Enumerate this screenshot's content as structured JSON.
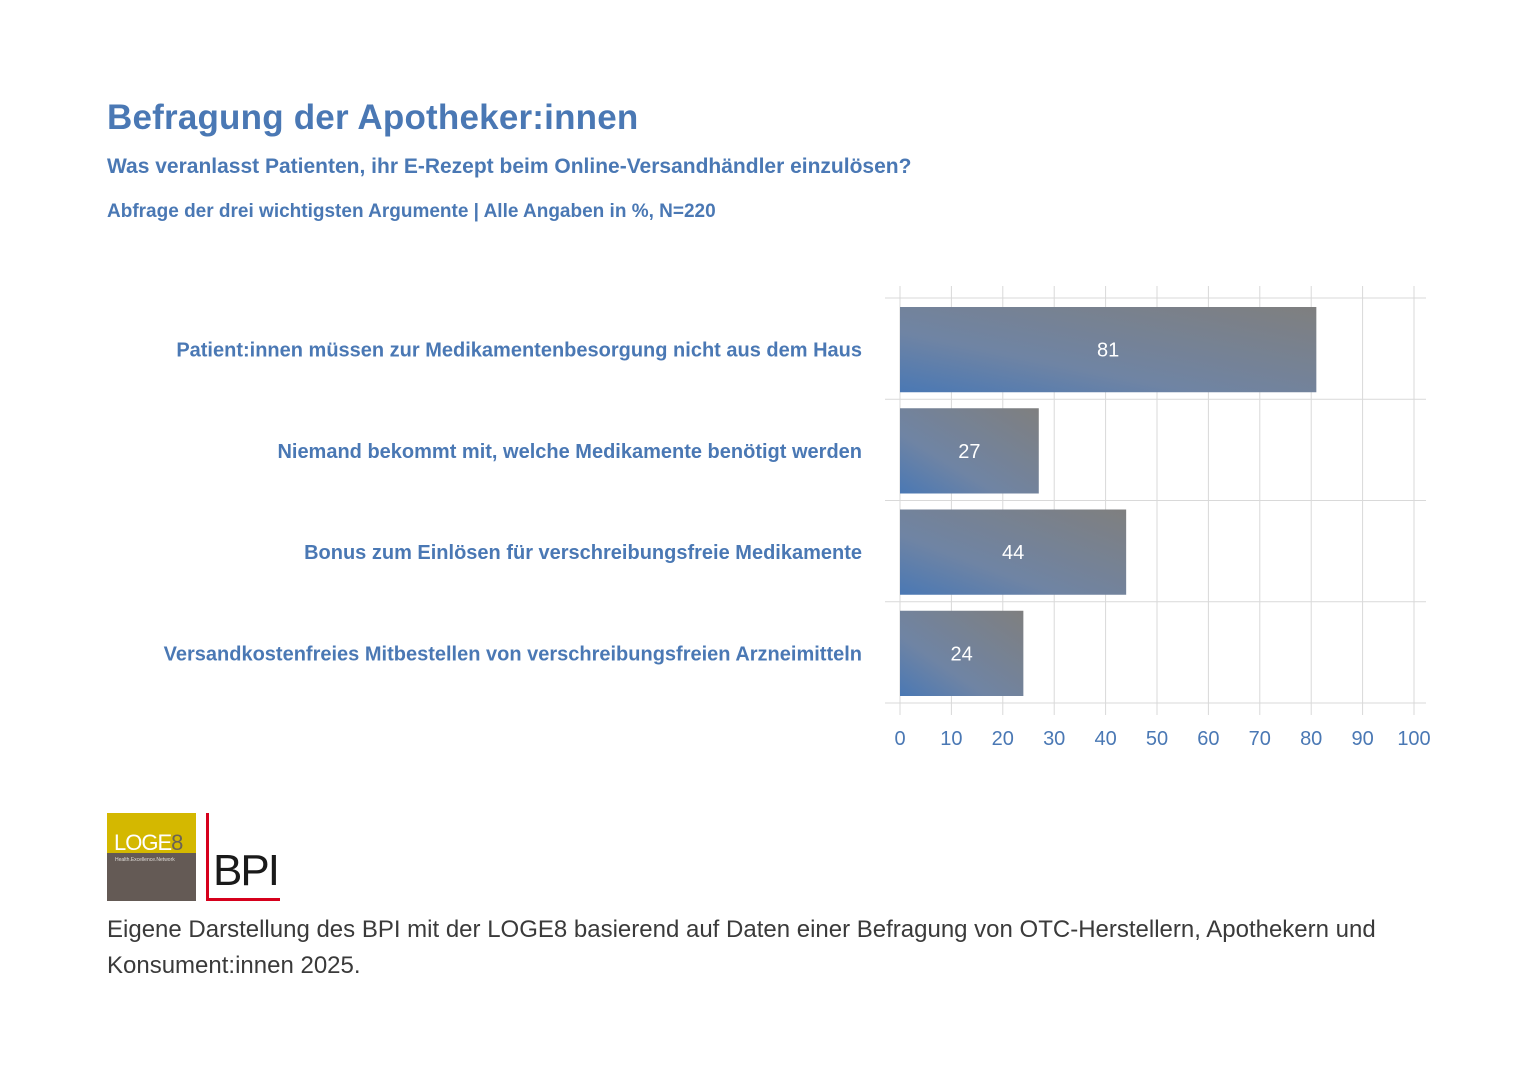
{
  "header": {
    "title": "Befragung der Apotheker:innen",
    "subtitle": "Was veranlasst Patienten, ihr E-Rezept beim Online-Versandhändler einzulösen?",
    "note": "Abfrage der drei wichtigsten Argumente | Alle Angaben in %, N=220"
  },
  "colors": {
    "text_accent": "#4a78b4",
    "bar_gradient_start": "#4a78b4",
    "bar_gradient_end": "#7f7f7f",
    "grid": "#d9d9d9"
  },
  "chart_data": {
    "type": "bar",
    "orientation": "horizontal",
    "title": "Befragung der Apotheker:innen",
    "subtitle": "Was veranlasst Patienten, ihr E-Rezept beim Online-Versandhändler einzulösen?",
    "xlabel": "",
    "ylabel": "",
    "categories": [
      "Patient:innen müssen zur Medikamentenbesorgung nicht aus dem Haus",
      "Niemand bekommt mit, welche Medikamente benötigt werden",
      "Bonus zum Einlösen für verschreibungsfreie Medikamente",
      "Versandkostenfreies Mitbestellen von verschreibungsfreien Arzneimitteln"
    ],
    "values": [
      81,
      27,
      44,
      24
    ],
    "data_labels": [
      "81",
      "27",
      "44",
      "24"
    ],
    "xlim": [
      0,
      100
    ],
    "xticks": [
      0,
      10,
      20,
      30,
      40,
      50,
      60,
      70,
      80,
      90,
      100
    ],
    "xtick_labels": [
      "0",
      "10",
      "20",
      "30",
      "40",
      "50",
      "60",
      "70",
      "80",
      "90",
      "100"
    ],
    "grid": true,
    "legend": "none"
  },
  "logos": {
    "loge8": {
      "name": "LOGE",
      "digit": "8",
      "tagline": "Health.Excellence.Network"
    },
    "bpi": {
      "name": "BPI"
    }
  },
  "footer": {
    "source": "Eigene Darstellung des BPI mit der LOGE8 basierend auf Daten einer Befragung von OTC-Herstellern, Apothekern und Konsument:innen 2025."
  }
}
